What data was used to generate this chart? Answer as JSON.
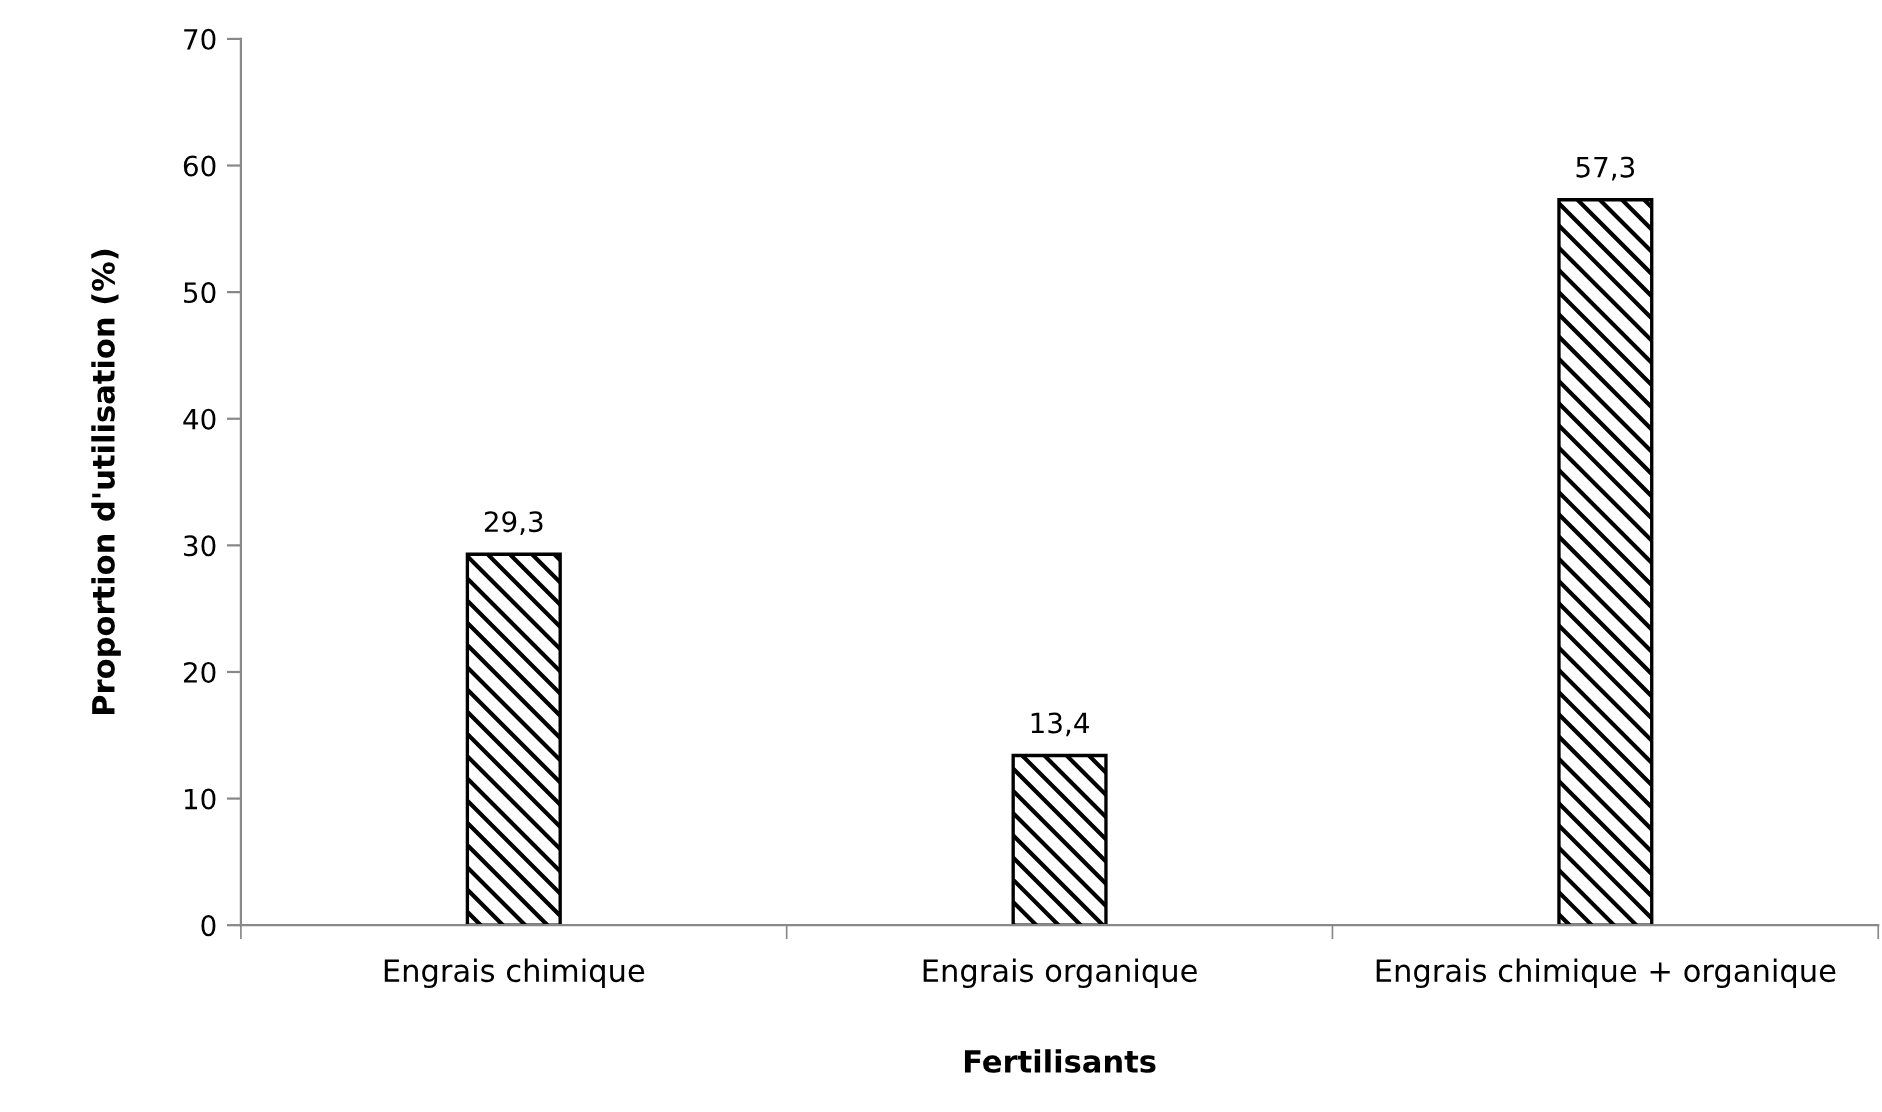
{
  "chart_data": {
    "type": "bar",
    "xlabel": "Fertilisants",
    "ylabel": "Proportion d'utilisation (%)",
    "categories": [
      "Engrais chimique",
      "Engrais organique",
      "Engrais chimique + organique"
    ],
    "values": [
      29.3,
      13.4,
      57.3
    ],
    "value_labels": [
      "29,3",
      "13,4",
      "57,3"
    ],
    "color": "#000000",
    "ylim": [
      0,
      70
    ],
    "yticks": [
      0,
      10,
      20,
      30,
      40,
      50,
      60,
      70
    ],
    "grid": false,
    "legend": false
  }
}
